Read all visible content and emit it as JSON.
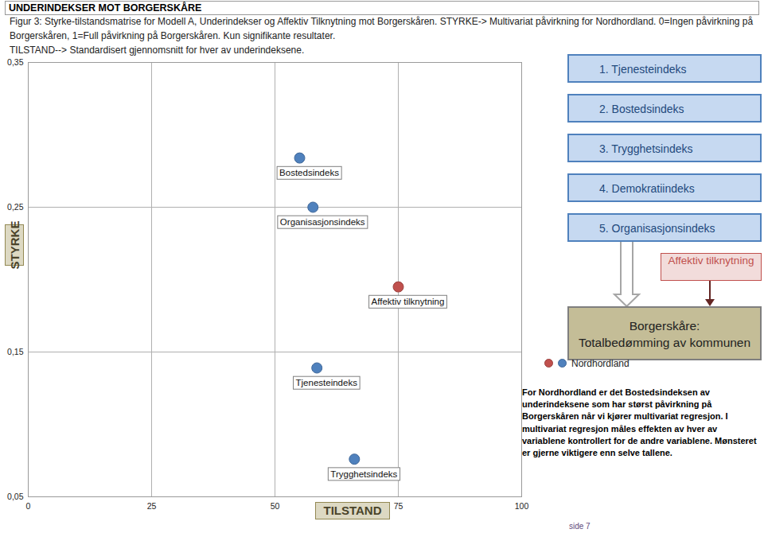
{
  "chart_data": {
    "type": "scatter",
    "title": "UNDERINDEKSER MOT BORGERSKÅRE",
    "subtitle": [
      "Figur 3: Styrke-tilstandsmatrise for Modell A, Underindekser og Affektiv Tilknytning mot Borgerskåren. STYRKE-> Multivariat påvirkning for Nordhordland. 0=Ingen påvirkning på Borgerskåren, 1=Full påvirkning på Borgerskåren. Kun signifikante resultater.",
      "TILSTAND--> Standardisert gjennomsnitt for hver av underindeksene."
    ],
    "x_label": "TILSTAND",
    "y_label": "STYRKE",
    "xlim": [
      0,
      100
    ],
    "xticks": [
      0,
      25,
      50,
      75,
      100
    ],
    "ylim": [
      0.05,
      0.35
    ],
    "yticks": [
      {
        "value": 0.05,
        "label": "0,05"
      },
      {
        "value": 0.15,
        "label": "0,15"
      },
      {
        "value": 0.25,
        "label": "0,25"
      },
      {
        "value": 0.35,
        "label": "0,35"
      }
    ],
    "grid": true,
    "legend": "right",
    "series": [
      {
        "name": "Nordhordland",
        "labels": [
          "Bostedsindeks",
          "Organisasjonsindeks",
          "Affektiv tilknytning",
          "Tjenesteindeks",
          "Trygghetsindeks"
        ],
        "x": [
          55.0,
          57.7,
          75.0,
          58.5,
          66.1
        ],
        "values": [
          0.284,
          0.25,
          0.195,
          0.139,
          0.076
        ],
        "colors": [
          "#4f81bd",
          "#4f81bd",
          "#c0504d",
          "#4f81bd",
          "#4f81bd"
        ]
      }
    ],
    "annotations": {
      "index_list": [
        "1. Tjenesteindeks",
        "2. Bostedsindeks",
        "3. Trygghetsindeks",
        "4. Demokratiindeks",
        "5. Organisasjonsindeks"
      ],
      "affective_box": "Affektiv tilknytning",
      "target_box": [
        "Borgerskåre:",
        "Totalbedømming av kommunen"
      ],
      "note": "For Nordhordland er det Bostedsindeksen av underindeksene som har størst påvirkning på Borgerskåren når vi kjører multivariat regresjon. I multivariat regresjon måles effekten av hver av variablene kontrollert for de andre variablene. Mønsteret er gjerne viktigere enn selve tallene.",
      "page": "side 7"
    }
  }
}
